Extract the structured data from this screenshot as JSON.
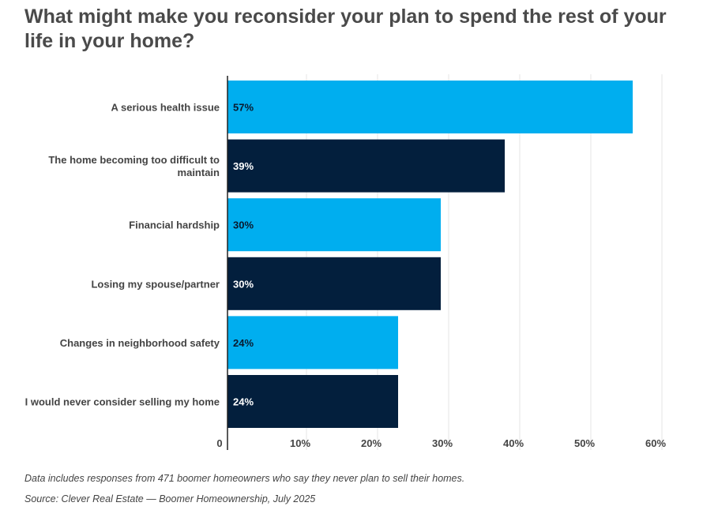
{
  "chart_data": {
    "type": "bar",
    "orientation": "horizontal",
    "title": "What might make you reconsider your plan to spend the rest of your life in your home?",
    "categories": [
      "A serious health issue",
      "The home becoming too difficult to maintain",
      "Financial hardship",
      "Losing my spouse/partner",
      "Changes in neighborhood safety",
      "I would never consider selling my home"
    ],
    "values": [
      57,
      39,
      30,
      30,
      24,
      24
    ],
    "data_labels": [
      "57%",
      "39%",
      "30%",
      "30%",
      "24%",
      "24%"
    ],
    "xlim": [
      0,
      60
    ],
    "ticks": [
      0,
      10,
      20,
      30,
      40,
      50,
      60
    ],
    "tick_labels": [
      "0",
      "10%",
      "20%",
      "30%",
      "40%",
      "50%",
      "60%"
    ],
    "grid": true,
    "colors": [
      "#00aeef",
      "#031f3d"
    ]
  },
  "footnote": "Data includes responses from 471 boomer homeowners who say they never plan to sell their homes.",
  "source": "Source: Clever Real Estate — Boomer Homeownership, July 2025"
}
